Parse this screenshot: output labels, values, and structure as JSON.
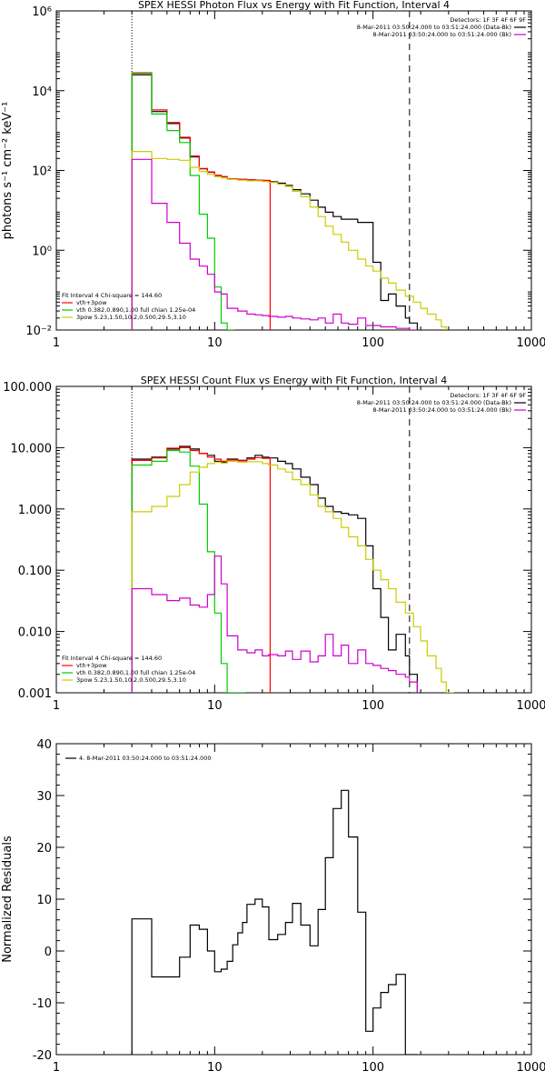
{
  "chart_data": [
    {
      "type": "line",
      "title": "SPEX HESSI Photon Flux vs Energy with Fit Function, Interval 4",
      "xlabel": "",
      "ylabel": "photons s⁻¹ cm⁻² keV⁻¹",
      "x_scale": "log",
      "y_scale": "log",
      "xlim": [
        1,
        1000
      ],
      "ylim": [
        0.01,
        1000000
      ],
      "x_ticks": [
        1,
        10,
        100,
        1000
      ],
      "x_tick_labels": [
        "1",
        "10",
        "100",
        "1000"
      ],
      "y_ticks": [
        0.01,
        1,
        100,
        10000,
        1000000
      ],
      "y_tick_labels": [
        "10⁻²",
        "10⁰",
        "10²",
        "10⁴",
        "10⁶"
      ],
      "vlines": [
        {
          "x": 3,
          "style": "dotted"
        },
        {
          "x": 170,
          "style": "dashed"
        }
      ],
      "legend_top_right": [
        {
          "text": "Detectors: 1F 3F 4F 6F 9F",
          "color": "#000000"
        },
        {
          "text": "8-Mar-2011 03:50:24.000 to 03:51:24.000 (Data-Bk)",
          "color": "#000000"
        },
        {
          "text": "8-Mar-2011 03:50:24.000 to 03:51:24.000 (Bk)",
          "color": "#cc00cc"
        }
      ],
      "legend_bottom_left": [
        {
          "text": "Fit Interval 4   Chi-square = 144.60",
          "color": "#000000"
        },
        {
          "text": "vth+3pow",
          "color": "#ff0000"
        },
        {
          "text": "vth 0.382,0.890,1.00  full chian 1.25e-04",
          "color": "#00cc00"
        },
        {
          "text": "3pow 5.23,1.50,10.2,0.500,29.5,3.10",
          "color": "#cccc00"
        }
      ],
      "series": [
        {
          "color": "#000000",
          "x": [
            3,
            4,
            5,
            6,
            7,
            8,
            9,
            10,
            11,
            12,
            14,
            16,
            18,
            20,
            22,
            25,
            28,
            31,
            35,
            40,
            45,
            50,
            56,
            63,
            70,
            80,
            90,
            100,
            112,
            125,
            140,
            160,
            170
          ],
          "y": [
            25000,
            3000,
            1500,
            650,
            220,
            110,
            90,
            75,
            70,
            62,
            60,
            58,
            57,
            56,
            52,
            48,
            42,
            33,
            26,
            18,
            12,
            9,
            7,
            6,
            6,
            5,
            5,
            0.5,
            0.055,
            0.08,
            0.04,
            0.02,
            0.015
          ]
        },
        {
          "color": "#ff0000",
          "x": [
            3,
            4,
            5,
            6,
            7,
            8,
            9,
            10,
            11,
            12,
            14,
            16,
            18,
            20
          ],
          "y": [
            28000,
            3300,
            1600,
            680,
            230,
            112,
            92,
            76,
            70,
            62,
            60,
            58,
            57,
            56
          ]
        },
        {
          "color": "#00cc00",
          "x": [
            3,
            4,
            5,
            6,
            7,
            8,
            9,
            10,
            11,
            12
          ],
          "y": [
            27000,
            2600,
            1000,
            500,
            75,
            8,
            2,
            0.12,
            0.015,
            0.01
          ]
        },
        {
          "color": "#cccc00",
          "x": [
            3,
            4,
            5,
            6,
            7,
            8,
            9,
            10,
            11,
            12,
            14,
            16,
            18,
            20,
            22,
            25,
            28,
            31,
            35,
            40,
            45,
            50,
            56,
            63,
            70,
            80,
            90,
            100,
            112,
            125,
            140,
            160,
            180,
            200,
            220,
            250,
            270,
            290
          ],
          "y": [
            300,
            200,
            190,
            180,
            120,
            95,
            80,
            70,
            65,
            60,
            57,
            55,
            55,
            53,
            50,
            45,
            40,
            30,
            22,
            12,
            7,
            4,
            2.5,
            1.6,
            1,
            0.6,
            0.4,
            0.3,
            0.2,
            0.15,
            0.1,
            0.07,
            0.05,
            0.035,
            0.025,
            0.018,
            0.012,
            0.008
          ]
        },
        {
          "color": "#cc00cc",
          "x": [
            3,
            4,
            5,
            6,
            7,
            8,
            9,
            10,
            11,
            12,
            14,
            16,
            18,
            20,
            22,
            25,
            28,
            31,
            35,
            40,
            45,
            50,
            56,
            63,
            70,
            80,
            90,
            100,
            112,
            125,
            140,
            160,
            170
          ],
          "y": [
            190,
            15,
            5,
            1.5,
            0.6,
            0.4,
            0.25,
            0.09,
            0.08,
            0.035,
            0.03,
            0.025,
            0.024,
            0.023,
            0.022,
            0.021,
            0.022,
            0.02,
            0.019,
            0.018,
            0.02,
            0.015,
            0.025,
            0.015,
            0.014,
            0.02,
            0.013,
            0.013,
            0.012,
            0.012,
            0.011,
            0.011,
            0.01
          ]
        }
      ]
    },
    {
      "type": "line",
      "title": "SPEX HESSI Count Flux vs Energy with Fit Function, Interval 4",
      "xlabel": "",
      "ylabel": "",
      "x_scale": "log",
      "y_scale": "log",
      "xlim": [
        1,
        1000
      ],
      "ylim": [
        0.001,
        100
      ],
      "x_ticks": [
        1,
        10,
        100,
        1000
      ],
      "x_tick_labels": [
        "1",
        "10",
        "100",
        "1000"
      ],
      "y_ticks": [
        0.001,
        0.01,
        0.1,
        1,
        10,
        100
      ],
      "y_tick_labels": [
        "0.001",
        "0.010",
        "0.100",
        "1.000",
        "10.000",
        "100.000"
      ],
      "vlines": [
        {
          "x": 3,
          "style": "dotted"
        },
        {
          "x": 170,
          "style": "dashed"
        }
      ],
      "legend_top_right": [
        {
          "text": "Detectors: 1F 3F 4F 6F 9F",
          "color": "#000000"
        },
        {
          "text": "8-Mar-2011 03:50:24.000 to 03:51:24.000 (Data-Bk)",
          "color": "#000000"
        },
        {
          "text": "8-Mar-2011 03:50:24.000 to 03:51:24.000 (Bk)",
          "color": "#cc00cc"
        }
      ],
      "legend_bottom_left": [
        {
          "text": "Fit Interval 4   Chi-square = 144.60",
          "color": "#000000"
        },
        {
          "text": "vth+3pow",
          "color": "#ff0000"
        },
        {
          "text": "vth 0.382,0.890,1.00  full chian 1.25e-04",
          "color": "#00cc00"
        },
        {
          "text": "3pow 5.23,1.50,10.2,0.500,29.5,3.10",
          "color": "#cccc00"
        }
      ],
      "series": [
        {
          "color": "#000000",
          "x": [
            3,
            4,
            5,
            6,
            7,
            8,
            9,
            10,
            11,
            12,
            14,
            16,
            18,
            20,
            22,
            25,
            28,
            31,
            35,
            40,
            45,
            50,
            56,
            63,
            70,
            80,
            90,
            100,
            112,
            125,
            140,
            160,
            170
          ],
          "y": [
            6.5,
            7,
            9.5,
            10.5,
            9.5,
            8,
            7.5,
            6,
            5.8,
            6.5,
            6.2,
            6.8,
            7.5,
            7,
            6.8,
            6,
            5.5,
            4.5,
            3.3,
            2.5,
            1.5,
            1.1,
            0.9,
            0.85,
            0.8,
            0.7,
            0.25,
            0.05,
            0.017,
            0.005,
            0.009,
            0.004,
            0.002
          ]
        },
        {
          "color": "#ff0000",
          "x": [
            3,
            4,
            5,
            6,
            7,
            8,
            9,
            10,
            11,
            12,
            14,
            16,
            18,
            20
          ],
          "y": [
            6.2,
            6.8,
            9.8,
            10,
            9,
            8,
            7,
            6.5,
            6,
            6.3,
            6.1,
            6.5,
            6.9,
            6.7
          ]
        },
        {
          "color": "#00cc00",
          "x": [
            3,
            4,
            5,
            6,
            7,
            8,
            9,
            10,
            11,
            12,
            14
          ],
          "y": [
            5.2,
            6,
            9,
            8.5,
            5,
            1.2,
            0.2,
            0.02,
            0.003,
            0.001,
            0.001
          ]
        },
        {
          "color": "#cccc00",
          "x": [
            3,
            4,
            5,
            6,
            7,
            8,
            9,
            10,
            11,
            12,
            14,
            16,
            18,
            20,
            22,
            25,
            28,
            31,
            35,
            40,
            45,
            50,
            56,
            63,
            70,
            80,
            90,
            100,
            112,
            125,
            140,
            160,
            180,
            200,
            220,
            250,
            270,
            290
          ],
          "y": [
            0.9,
            1.1,
            1.6,
            2.5,
            4,
            4.8,
            5.5,
            5.8,
            5.6,
            6,
            5.8,
            5.9,
            5.9,
            5.5,
            5.2,
            4.5,
            4,
            3,
            2.5,
            1.7,
            1.1,
            0.9,
            0.7,
            0.5,
            0.35,
            0.25,
            0.15,
            0.1,
            0.07,
            0.05,
            0.03,
            0.02,
            0.012,
            0.007,
            0.004,
            0.0025,
            0.0015,
            0.001
          ]
        },
        {
          "color": "#cc00cc",
          "x": [
            3,
            4,
            5,
            6,
            7,
            8,
            9,
            10,
            11,
            12,
            14,
            16,
            18,
            20,
            22,
            25,
            28,
            31,
            35,
            40,
            45,
            50,
            56,
            63,
            70,
            80,
            90,
            100,
            112,
            125,
            140,
            160,
            170
          ],
          "y": [
            0.05,
            0.04,
            0.032,
            0.035,
            0.027,
            0.025,
            0.04,
            0.17,
            0.06,
            0.0085,
            0.005,
            0.0045,
            0.005,
            0.004,
            0.0042,
            0.004,
            0.0048,
            0.0035,
            0.0048,
            0.0032,
            0.004,
            0.009,
            0.004,
            0.006,
            0.003,
            0.005,
            0.003,
            0.0028,
            0.0025,
            0.0023,
            0.002,
            0.0018,
            0.0015
          ]
        }
      ]
    },
    {
      "type": "line",
      "title": "",
      "xlabel": "",
      "ylabel": "Normalized Residuals",
      "x_scale": "log",
      "y_scale": "linear",
      "xlim": [
        1,
        1000
      ],
      "ylim": [
        -20,
        40
      ],
      "x_ticks": [
        1,
        10,
        100,
        1000
      ],
      "x_tick_labels": [
        "1",
        "10",
        "100",
        "1000"
      ],
      "y_ticks": [
        -20,
        -10,
        0,
        10,
        20,
        30,
        40
      ],
      "y_tick_labels": [
        "-20",
        "-10",
        "0",
        "10",
        "20",
        "30",
        "40"
      ],
      "legend_top_left": [
        {
          "text": "4. 8-Mar-2011 03:50:24.000 to 03:51:24.000",
          "color": "#000000"
        }
      ],
      "series": [
        {
          "color": "#000000",
          "x": [
            3,
            4,
            5,
            6,
            7,
            8,
            9,
            10,
            11,
            12,
            13,
            14,
            15,
            16,
            18,
            20,
            22,
            25,
            28,
            31,
            35,
            40,
            45,
            50,
            56,
            63,
            70,
            80,
            90,
            100,
            112,
            125,
            140,
            160,
            170
          ],
          "y": [
            6.2,
            -5,
            -5,
            -1.2,
            5,
            4.2,
            0,
            -4,
            -3.5,
            -2,
            1.2,
            3.5,
            5.5,
            9,
            10,
            8.5,
            2.2,
            3.2,
            5.5,
            9.2,
            5,
            1,
            8,
            18,
            27.5,
            31,
            22,
            7.5,
            -15.5,
            -11,
            -8,
            -6.5,
            -4.5,
            -20,
            -20
          ]
        }
      ]
    }
  ]
}
